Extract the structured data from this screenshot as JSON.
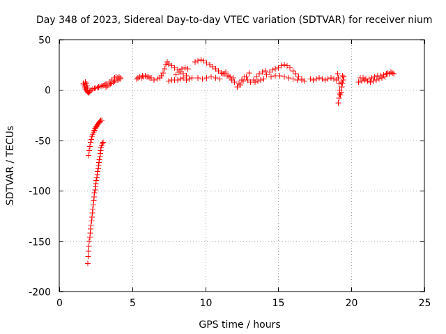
{
  "chart_data": {
    "type": "scatter",
    "title": "Day 348 of 2023, Sidereal Day-to-day VTEC variation (SDTVAR) for receiver nium",
    "xlabel": "GPS time / hours",
    "ylabel": "SDTVAR / TECUs",
    "xlim": [
      0,
      25
    ],
    "ylim": [
      -200,
      50
    ],
    "xticks": [
      0,
      5,
      10,
      15,
      20,
      25
    ],
    "yticks": [
      -200,
      -150,
      -100,
      -50,
      0,
      50
    ],
    "xtick_labels": [
      "0",
      "5",
      "10",
      "15",
      "20",
      "25"
    ],
    "ytick_labels": [
      "-200",
      "-150",
      "-100",
      "-50",
      "0",
      "50"
    ],
    "grid": true,
    "marker": "+",
    "series": [
      {
        "name": "SDTVAR",
        "color": "#ff0000",
        "points": [
          [
            1.65,
            7
          ],
          [
            1.7,
            5
          ],
          [
            1.75,
            3
          ],
          [
            1.8,
            1
          ],
          [
            1.85,
            0
          ],
          [
            1.9,
            -1
          ],
          [
            1.95,
            -2
          ],
          [
            2.0,
            -3
          ],
          [
            2.05,
            -2
          ],
          [
            2.1,
            -1
          ],
          [
            1.8,
            8
          ],
          [
            1.85,
            6
          ],
          [
            1.9,
            4
          ],
          [
            1.95,
            2
          ],
          [
            2.2,
            0
          ],
          [
            2.3,
            1
          ],
          [
            2.4,
            1.5
          ],
          [
            2.5,
            2
          ],
          [
            2.6,
            2.5
          ],
          [
            2.7,
            3
          ],
          [
            2.8,
            3.5
          ],
          [
            2.9,
            4
          ],
          [
            3.0,
            4.5
          ],
          [
            3.1,
            5
          ],
          [
            2.0,
            -65
          ],
          [
            2.05,
            -60
          ],
          [
            2.1,
            -56
          ],
          [
            2.15,
            -52
          ],
          [
            2.2,
            -49
          ],
          [
            2.25,
            -46
          ],
          [
            2.3,
            -44
          ],
          [
            2.35,
            -42
          ],
          [
            2.4,
            -40
          ],
          [
            2.45,
            -38
          ],
          [
            2.5,
            -37
          ],
          [
            2.55,
            -36
          ],
          [
            2.6,
            -35
          ],
          [
            2.65,
            -34
          ],
          [
            2.7,
            -33
          ],
          [
            2.75,
            -32
          ],
          [
            2.8,
            -31
          ],
          [
            2.85,
            -30
          ],
          [
            2.9,
            -30
          ],
          [
            1.95,
            -172
          ],
          [
            1.97,
            -165
          ],
          [
            2.0,
            -160
          ],
          [
            2.03,
            -155
          ],
          [
            2.06,
            -150
          ],
          [
            2.09,
            -146
          ],
          [
            2.12,
            -142
          ],
          [
            2.15,
            -138
          ],
          [
            2.18,
            -134
          ],
          [
            2.21,
            -130
          ],
          [
            2.24,
            -126
          ],
          [
            2.27,
            -122
          ],
          [
            2.3,
            -118
          ],
          [
            2.33,
            -114
          ],
          [
            2.36,
            -110
          ],
          [
            2.39,
            -106
          ],
          [
            2.42,
            -102
          ],
          [
            2.45,
            -99
          ],
          [
            2.48,
            -96
          ],
          [
            2.51,
            -93
          ],
          [
            2.54,
            -90
          ],
          [
            2.57,
            -87
          ],
          [
            2.6,
            -84
          ],
          [
            2.63,
            -81
          ],
          [
            2.66,
            -78
          ],
          [
            2.69,
            -75
          ],
          [
            2.72,
            -72
          ],
          [
            2.75,
            -69
          ],
          [
            2.78,
            -66
          ],
          [
            2.81,
            -63
          ],
          [
            2.84,
            -60
          ],
          [
            2.87,
            -57
          ],
          [
            2.9,
            -55
          ],
          [
            2.95,
            -53
          ],
          [
            3.0,
            -52
          ],
          [
            3.2,
            3
          ],
          [
            3.3,
            4
          ],
          [
            3.4,
            5
          ],
          [
            3.5,
            6
          ],
          [
            3.6,
            7
          ],
          [
            3.7,
            8
          ],
          [
            3.8,
            9
          ],
          [
            3.9,
            10
          ],
          [
            4.0,
            10
          ],
          [
            4.1,
            11
          ],
          [
            4.2,
            11
          ],
          [
            3.2,
            6
          ],
          [
            3.4,
            8
          ],
          [
            3.6,
            10
          ],
          [
            3.8,
            12
          ],
          [
            4.0,
            12
          ],
          [
            4.2,
            12
          ],
          [
            3.9,
            13
          ],
          [
            4.1,
            13
          ],
          [
            5.3,
            11
          ],
          [
            5.4,
            12
          ],
          [
            5.6,
            12
          ],
          [
            5.8,
            13
          ],
          [
            6.0,
            13
          ],
          [
            6.2,
            12
          ],
          [
            5.5,
            13
          ],
          [
            5.7,
            14
          ],
          [
            5.9,
            14
          ],
          [
            6.1,
            13
          ],
          [
            6.3,
            12
          ],
          [
            6.5,
            10
          ],
          [
            6.7,
            11
          ],
          [
            6.9,
            12
          ],
          [
            7.0,
            14
          ],
          [
            7.1,
            17
          ],
          [
            7.2,
            21
          ],
          [
            7.3,
            25
          ],
          [
            7.4,
            28
          ],
          [
            7.5,
            26
          ],
          [
            7.7,
            24
          ],
          [
            7.9,
            22
          ],
          [
            8.1,
            20
          ],
          [
            8.3,
            18
          ],
          [
            8.5,
            16
          ],
          [
            8.7,
            14
          ],
          [
            7.5,
            9
          ],
          [
            7.7,
            10
          ],
          [
            7.9,
            10
          ],
          [
            8.1,
            10
          ],
          [
            8.3,
            11
          ],
          [
            8.5,
            12
          ],
          [
            8.0,
            15
          ],
          [
            8.2,
            18
          ],
          [
            8.4,
            21
          ],
          [
            8.6,
            22
          ],
          [
            8.8,
            21
          ],
          [
            8.7,
            10
          ],
          [
            8.9,
            11
          ],
          [
            9.1,
            12
          ],
          [
            9.3,
            28
          ],
          [
            9.5,
            29
          ],
          [
            9.7,
            30
          ],
          [
            9.9,
            29
          ],
          [
            10.1,
            27
          ],
          [
            10.3,
            25
          ],
          [
            10.5,
            23
          ],
          [
            10.7,
            21
          ],
          [
            10.9,
            19
          ],
          [
            11.1,
            17
          ],
          [
            11.3,
            16
          ],
          [
            11.5,
            14
          ],
          [
            11.7,
            13
          ],
          [
            11.9,
            12
          ],
          [
            9.5,
            12
          ],
          [
            9.8,
            11
          ],
          [
            10.1,
            12
          ],
          [
            10.4,
            13
          ],
          [
            10.7,
            12
          ],
          [
            11.0,
            11
          ],
          [
            11.2,
            16
          ],
          [
            11.4,
            18
          ],
          [
            11.6,
            14
          ],
          [
            11.8,
            10
          ],
          [
            12.0,
            8
          ],
          [
            12.2,
            3
          ],
          [
            12.4,
            5
          ],
          [
            12.6,
            9
          ],
          [
            12.8,
            13
          ],
          [
            13.0,
            17
          ],
          [
            12.3,
            7
          ],
          [
            12.5,
            10
          ],
          [
            12.7,
            13
          ],
          [
            12.9,
            10
          ],
          [
            13.1,
            8
          ],
          [
            13.3,
            10
          ],
          [
            13.5,
            13
          ],
          [
            13.7,
            16
          ],
          [
            13.9,
            18
          ],
          [
            14.1,
            19
          ],
          [
            13.4,
            8
          ],
          [
            13.6,
            9
          ],
          [
            13.8,
            10
          ],
          [
            14.0,
            11
          ],
          [
            14.2,
            15
          ],
          [
            14.4,
            18
          ],
          [
            14.6,
            20
          ],
          [
            14.8,
            21
          ],
          [
            15.0,
            22
          ],
          [
            15.2,
            24
          ],
          [
            15.4,
            25
          ],
          [
            15.6,
            24
          ],
          [
            15.8,
            22
          ],
          [
            16.0,
            19
          ],
          [
            16.2,
            16
          ],
          [
            16.4,
            13
          ],
          [
            16.6,
            11
          ],
          [
            16.8,
            9
          ],
          [
            14.5,
            13
          ],
          [
            14.8,
            14
          ],
          [
            15.1,
            14
          ],
          [
            15.4,
            13
          ],
          [
            15.7,
            12
          ],
          [
            16.0,
            11
          ],
          [
            16.3,
            10
          ],
          [
            16.6,
            10
          ],
          [
            17.2,
            11
          ],
          [
            17.4,
            10
          ],
          [
            17.6,
            11
          ],
          [
            17.8,
            12
          ],
          [
            18.0,
            11
          ],
          [
            18.2,
            10
          ],
          [
            18.4,
            11
          ],
          [
            18.6,
            12
          ],
          [
            18.8,
            11
          ],
          [
            19.0,
            10
          ],
          [
            19.05,
            16
          ],
          [
            19.1,
            12
          ],
          [
            19.15,
            6
          ],
          [
            19.2,
            0
          ],
          [
            19.25,
            -5
          ],
          [
            19.3,
            -2
          ],
          [
            19.35,
            3
          ],
          [
            19.4,
            7
          ],
          [
            19.45,
            10
          ],
          [
            19.5,
            13
          ],
          [
            19.1,
            -13
          ],
          [
            19.15,
            -8
          ],
          [
            19.2,
            -4
          ],
          [
            19.3,
            8
          ],
          [
            19.4,
            14
          ],
          [
            20.5,
            8
          ],
          [
            20.7,
            9
          ],
          [
            20.9,
            10
          ],
          [
            21.1,
            9
          ],
          [
            21.3,
            8
          ],
          [
            21.5,
            9
          ],
          [
            21.7,
            10
          ],
          [
            21.9,
            11
          ],
          [
            22.1,
            12
          ],
          [
            22.3,
            13
          ],
          [
            20.6,
            12
          ],
          [
            20.8,
            12
          ],
          [
            21.0,
            11
          ],
          [
            21.2,
            11
          ],
          [
            21.4,
            12
          ],
          [
            21.6,
            13
          ],
          [
            21.8,
            14
          ],
          [
            22.0,
            14
          ],
          [
            22.2,
            15
          ],
          [
            22.4,
            16
          ],
          [
            22.6,
            16
          ],
          [
            22.8,
            17
          ],
          [
            22.9,
            16
          ],
          [
            22.5,
            17
          ],
          [
            22.7,
            18
          ]
        ]
      }
    ]
  }
}
